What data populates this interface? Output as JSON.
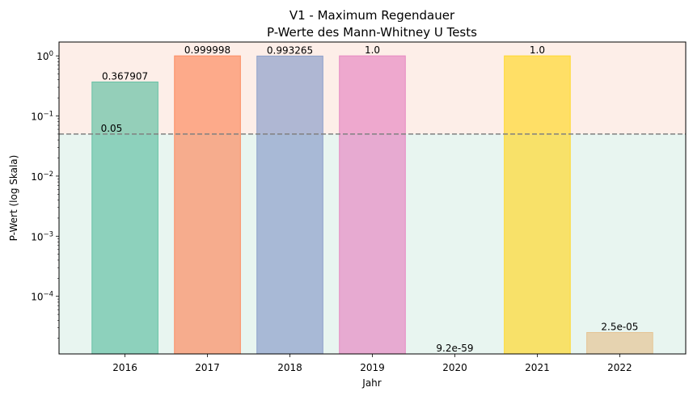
{
  "chart_data": {
    "type": "bar",
    "title": "V1 - Maximum Regendauer",
    "subtitle": "P-Werte des Mann-Whitney U Tests",
    "xlabel": "Jahr",
    "ylabel": "P-Wert (log Skala)",
    "yscale": "log",
    "ylim": [
      1.1e-05,
      1.7
    ],
    "categories": [
      "2016",
      "2017",
      "2018",
      "2019",
      "2020",
      "2021",
      "2022"
    ],
    "values": [
      0.367907,
      0.999998,
      0.993265,
      1.0,
      9.2e-59,
      1.0,
      2.5e-05
    ],
    "value_labels": [
      "0.367907",
      "0.999998",
      "0.993265",
      "1.0",
      "9.2e-59",
      "1.0",
      "2.5e-05"
    ],
    "bar_colors": [
      "#66c2a5",
      "#fc8d62",
      "#8da0cb",
      "#e78ac3",
      "#a6d854",
      "#ffd92f",
      "#e5c494"
    ],
    "y_ticks": [
      {
        "value": 0.0001,
        "base": "10",
        "exp": "−4"
      },
      {
        "value": 0.001,
        "base": "10",
        "exp": "−3"
      },
      {
        "value": 0.01,
        "base": "10",
        "exp": "−2"
      },
      {
        "value": 0.1,
        "base": "10",
        "exp": "−1"
      },
      {
        "value": 1,
        "base": "10",
        "exp": "0"
      }
    ],
    "threshold": {
      "value": 0.05,
      "label": "0.05",
      "line_color": "#808080"
    },
    "regions": {
      "above_color": "#fdeee8",
      "below_color": "#e8f5f0"
    },
    "grid": false,
    "legend": "none"
  }
}
